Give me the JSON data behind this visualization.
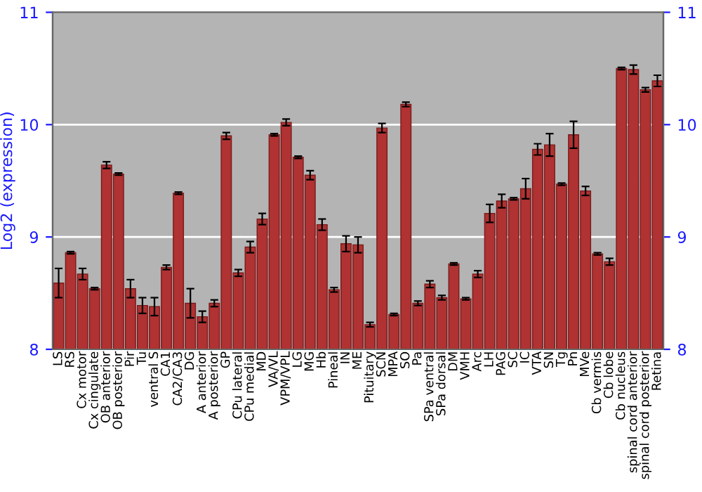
{
  "chart_data": {
    "type": "bar",
    "ylabel": "Log2 (expression)",
    "categories": [
      "LS",
      "RS",
      "Cx motor",
      "Cx cingulate",
      "OB anterior",
      "OB posterior",
      "Pir",
      "Tu",
      "ventral S",
      "CA1",
      "CA2/CA3",
      "DG",
      "A anterior",
      "A posterior",
      "GP",
      "CPu lateral",
      "CPu medial",
      "MD",
      "VA/VL",
      "VPM/VPL",
      "LG",
      "MG",
      "Hb",
      "Pineal",
      "IN",
      "ME",
      "Pituitary",
      "SCN",
      "MPA",
      "SO",
      "Pa",
      "SPa ventral",
      "SPa dorsal",
      "DM",
      "VMH",
      "Arc",
      "LH",
      "PAG",
      "SC",
      "IC",
      "VTA",
      "SN",
      "Tg",
      "Pn",
      "MVe",
      "Cb vermis",
      "Cb lobe",
      "Cb nucleus",
      "spinal cord anterior",
      "spinal cord posterior",
      "Retina"
    ],
    "values": [
      8.59,
      8.86,
      8.67,
      8.54,
      9.64,
      9.56,
      8.54,
      8.39,
      8.38,
      8.73,
      9.39,
      8.41,
      8.29,
      8.41,
      9.9,
      8.68,
      8.91,
      9.16,
      9.91,
      10.02,
      9.71,
      9.55,
      9.11,
      8.53,
      8.94,
      8.93,
      8.22,
      9.97,
      8.31,
      10.18,
      8.41,
      8.58,
      8.46,
      8.76,
      8.45,
      8.67,
      9.21,
      9.32,
      9.34,
      9.43,
      9.78,
      9.82,
      9.47,
      9.91,
      9.41,
      8.85,
      8.78,
      10.5,
      10.49,
      10.31,
      10.39
    ],
    "errors": [
      0.13,
      0.01,
      0.05,
      0.01,
      0.03,
      0.01,
      0.08,
      0.07,
      0.08,
      0.02,
      0.01,
      0.13,
      0.05,
      0.03,
      0.03,
      0.03,
      0.05,
      0.05,
      0.01,
      0.03,
      0.01,
      0.04,
      0.05,
      0.02,
      0.07,
      0.07,
      0.02,
      0.04,
      0.01,
      0.02,
      0.02,
      0.03,
      0.02,
      0.01,
      0.01,
      0.03,
      0.08,
      0.06,
      0.01,
      0.09,
      0.05,
      0.1,
      0.01,
      0.12,
      0.04,
      0.01,
      0.03,
      0.01,
      0.04,
      0.02,
      0.05
    ],
    "color": "#b03232",
    "ylim": [
      8,
      11
    ],
    "yticks": [
      8,
      9,
      10,
      11
    ],
    "y2lim": [
      8,
      11
    ],
    "y2ticks": [
      8,
      9,
      10,
      11
    ],
    "grid": "y"
  }
}
